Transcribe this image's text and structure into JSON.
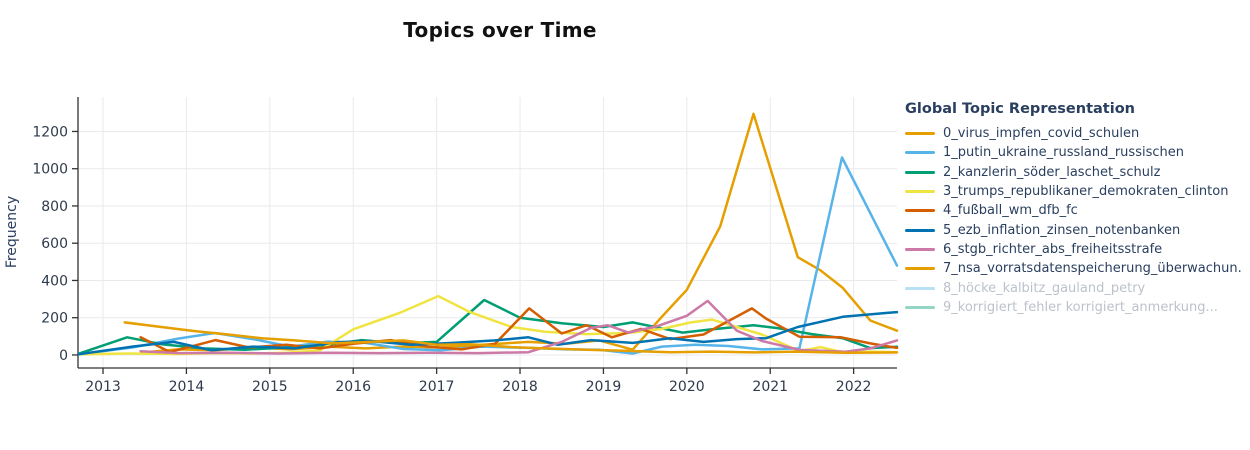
{
  "title": "Topics over Time",
  "y_axis_title": "Frequency",
  "legend": {
    "title": "Global Topic Representation"
  },
  "chart_data": {
    "type": "line",
    "title": "Topics over Time",
    "xlabel": "",
    "ylabel": "Frequency",
    "legend_title": "Global Topic Representation",
    "legend_position": "right",
    "grid": true,
    "x_range": [
      2012.7,
      2022.52
    ],
    "y_range": [
      -70,
      1385
    ],
    "x_ticks": [
      2013,
      2014,
      2015,
      2016,
      2017,
      2018,
      2019,
      2020,
      2021,
      2022
    ],
    "y_ticks": [
      0,
      200,
      400,
      600,
      800,
      1000,
      1200
    ],
    "series": [
      {
        "name": "0_virus_impfen_covid_schulen",
        "color": "#E69F00",
        "visible": true,
        "points": [
          [
            2013.5,
            15
          ],
          [
            2013.9,
            30
          ],
          [
            2014.35,
            25
          ],
          [
            2014.8,
            40
          ],
          [
            2015.25,
            30
          ],
          [
            2015.7,
            45
          ],
          [
            2016.15,
            35
          ],
          [
            2016.6,
            45
          ],
          [
            2017.05,
            40
          ],
          [
            2017.55,
            55
          ],
          [
            2018.1,
            70
          ],
          [
            2018.55,
            60
          ],
          [
            2018.95,
            78
          ],
          [
            2019.35,
            28
          ],
          [
            2019.7,
            205
          ],
          [
            2020.0,
            350
          ],
          [
            2020.4,
            690
          ],
          [
            2020.8,
            1295
          ],
          [
            2021.33,
            525
          ],
          [
            2021.6,
            455
          ],
          [
            2021.87,
            360
          ],
          [
            2022.2,
            185
          ],
          [
            2022.52,
            130
          ]
        ]
      },
      {
        "name": "1_putin_ukraine_russland_russischen",
        "color": "#56B4E9",
        "visible": true,
        "points": [
          [
            2012.7,
            3
          ],
          [
            2013.35,
            40
          ],
          [
            2013.9,
            88
          ],
          [
            2014.34,
            118
          ],
          [
            2014.8,
            85
          ],
          [
            2015.25,
            45
          ],
          [
            2015.7,
            72
          ],
          [
            2016.15,
            65
          ],
          [
            2016.6,
            32
          ],
          [
            2017.05,
            25
          ],
          [
            2017.55,
            45
          ],
          [
            2018.1,
            38
          ],
          [
            2018.55,
            30
          ],
          [
            2018.95,
            28
          ],
          [
            2019.35,
            8
          ],
          [
            2019.7,
            45
          ],
          [
            2020.1,
            55
          ],
          [
            2020.5,
            48
          ],
          [
            2020.9,
            30
          ],
          [
            2021.35,
            35
          ],
          [
            2021.86,
            1060
          ],
          [
            2022.52,
            480
          ]
        ]
      },
      {
        "name": "2_kanzlerin_söder_laschet_schulz",
        "color": "#009E73",
        "visible": true,
        "points": [
          [
            2012.7,
            5
          ],
          [
            2013.29,
            95
          ],
          [
            2013.7,
            58
          ],
          [
            2014.2,
            35
          ],
          [
            2014.7,
            28
          ],
          [
            2015.2,
            40
          ],
          [
            2015.7,
            55
          ],
          [
            2016.1,
            80
          ],
          [
            2016.55,
            62
          ],
          [
            2017.0,
            70
          ],
          [
            2017.57,
            295
          ],
          [
            2018.0,
            200
          ],
          [
            2018.5,
            170
          ],
          [
            2019.0,
            150
          ],
          [
            2019.35,
            175
          ],
          [
            2019.95,
            120
          ],
          [
            2020.25,
            135
          ],
          [
            2020.8,
            160
          ],
          [
            2021.1,
            143
          ],
          [
            2021.5,
            112
          ],
          [
            2021.87,
            90
          ],
          [
            2022.2,
            37
          ],
          [
            2022.52,
            44
          ]
        ]
      },
      {
        "name": "3_trumps_republikaner_demokraten_clinton",
        "color": "#F0E442",
        "visible": true,
        "points": [
          [
            2012.7,
            3
          ],
          [
            2013.3,
            8
          ],
          [
            2013.9,
            5
          ],
          [
            2014.35,
            10
          ],
          [
            2014.8,
            8
          ],
          [
            2015.2,
            12
          ],
          [
            2015.6,
            25
          ],
          [
            2016.0,
            138
          ],
          [
            2016.55,
            225
          ],
          [
            2017.02,
            316
          ],
          [
            2017.4,
            230
          ],
          [
            2017.9,
            150
          ],
          [
            2018.3,
            125
          ],
          [
            2018.8,
            112
          ],
          [
            2019.3,
            118
          ],
          [
            2019.7,
            140
          ],
          [
            2020.05,
            175
          ],
          [
            2020.3,
            190
          ],
          [
            2020.6,
            150
          ],
          [
            2020.9,
            110
          ],
          [
            2021.35,
            20
          ],
          [
            2021.6,
            42
          ],
          [
            2021.9,
            12
          ],
          [
            2022.2,
            18
          ],
          [
            2022.52,
            15
          ]
        ]
      },
      {
        "name": "4_fußball_wm_dfb_fc",
        "color": "#D55E00",
        "visible": true,
        "points": [
          [
            2013.45,
            95
          ],
          [
            2013.8,
            16
          ],
          [
            2014.1,
            50
          ],
          [
            2014.35,
            80
          ],
          [
            2014.75,
            40
          ],
          [
            2015.2,
            55
          ],
          [
            2015.6,
            35
          ],
          [
            2016.0,
            60
          ],
          [
            2016.45,
            80
          ],
          [
            2016.9,
            45
          ],
          [
            2017.3,
            30
          ],
          [
            2017.7,
            60
          ],
          [
            2018.11,
            250
          ],
          [
            2018.5,
            115
          ],
          [
            2018.8,
            160
          ],
          [
            2019.1,
            95
          ],
          [
            2019.45,
            140
          ],
          [
            2019.8,
            85
          ],
          [
            2020.2,
            110
          ],
          [
            2020.78,
            250
          ],
          [
            2020.95,
            195
          ],
          [
            2021.35,
            98
          ],
          [
            2021.85,
            95
          ],
          [
            2022.2,
            62
          ],
          [
            2022.52,
            38
          ]
        ]
      },
      {
        "name": "5_ezb_inflation_zinsen_notenbanken",
        "color": "#0072B2",
        "visible": true,
        "points": [
          [
            2012.7,
            3
          ],
          [
            2013.35,
            45
          ],
          [
            2013.85,
            70
          ],
          [
            2014.3,
            25
          ],
          [
            2014.8,
            45
          ],
          [
            2015.3,
            35
          ],
          [
            2015.8,
            68
          ],
          [
            2016.2,
            75
          ],
          [
            2016.7,
            55
          ],
          [
            2017.2,
            65
          ],
          [
            2017.7,
            78
          ],
          [
            2018.1,
            95
          ],
          [
            2018.45,
            55
          ],
          [
            2018.85,
            80
          ],
          [
            2019.35,
            65
          ],
          [
            2019.8,
            90
          ],
          [
            2020.2,
            70
          ],
          [
            2020.6,
            85
          ],
          [
            2020.95,
            90
          ],
          [
            2021.33,
            150
          ],
          [
            2021.87,
            205
          ],
          [
            2022.3,
            222
          ],
          [
            2022.52,
            230
          ]
        ]
      },
      {
        "name": "6_stgb_richter_abs_freiheitsstrafe",
        "color": "#CC79A7",
        "visible": true,
        "points": [
          [
            2013.45,
            20
          ],
          [
            2013.9,
            10
          ],
          [
            2014.5,
            12
          ],
          [
            2015.1,
            8
          ],
          [
            2015.7,
            12
          ],
          [
            2016.3,
            10
          ],
          [
            2016.9,
            12
          ],
          [
            2017.5,
            10
          ],
          [
            2018.1,
            15
          ],
          [
            2018.5,
            70
          ],
          [
            2018.85,
            145
          ],
          [
            2019.05,
            160
          ],
          [
            2019.3,
            120
          ],
          [
            2019.65,
            155
          ],
          [
            2020.0,
            210
          ],
          [
            2020.25,
            290
          ],
          [
            2020.6,
            130
          ],
          [
            2020.9,
            75
          ],
          [
            2021.35,
            27
          ],
          [
            2021.9,
            17
          ],
          [
            2022.2,
            35
          ],
          [
            2022.52,
            78
          ]
        ]
      },
      {
        "name": "7_nsa_vorratsdatenspeicherung_überwachun.",
        "color": "#E69F00",
        "visible": true,
        "points": [
          [
            2013.26,
            175
          ],
          [
            2013.7,
            150
          ],
          [
            2014.1,
            128
          ],
          [
            2014.5,
            110
          ],
          [
            2014.9,
            90
          ],
          [
            2015.3,
            78
          ],
          [
            2015.75,
            62
          ],
          [
            2016.2,
            70
          ],
          [
            2016.6,
            78
          ],
          [
            2017.0,
            55
          ],
          [
            2017.4,
            58
          ],
          [
            2017.9,
            42
          ],
          [
            2018.3,
            35
          ],
          [
            2018.8,
            28
          ],
          [
            2019.3,
            22
          ],
          [
            2019.8,
            15
          ],
          [
            2020.3,
            18
          ],
          [
            2020.8,
            14
          ],
          [
            2021.3,
            18
          ],
          [
            2021.9,
            12
          ],
          [
            2022.52,
            14
          ]
        ]
      },
      {
        "name": "8_höcke_kalbitz_gauland_petry",
        "color": "#56B4E9",
        "visible": false,
        "points": []
      },
      {
        "name": "9_korrigiert_fehler korrigiert_anmerkung...",
        "color": "#009E73",
        "visible": false,
        "points": []
      }
    ]
  }
}
